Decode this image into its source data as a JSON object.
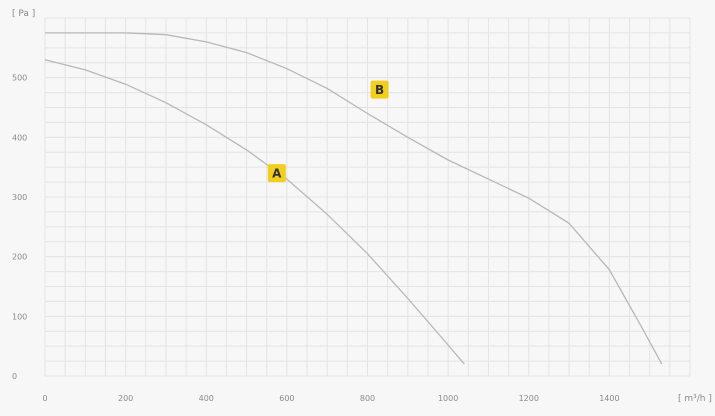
{
  "chart_data": {
    "type": "line",
    "title": "",
    "xunit": "[ m³/h ]",
    "yunit": "[ Pa ]",
    "xlim": [
      0,
      1600
    ],
    "ylim": [
      0,
      600
    ],
    "x_ticks": [
      "0",
      "200",
      "400",
      "600",
      "800",
      "1000",
      "1200",
      "1400"
    ],
    "y_ticks": [
      "0",
      "100",
      "200",
      "300",
      "400",
      "500"
    ],
    "y_tick_values": [
      0,
      100,
      200,
      300,
      400,
      500
    ],
    "x_tick_values": [
      0,
      200,
      400,
      600,
      800,
      1000,
      1200,
      1400
    ],
    "grid": true,
    "colors": {
      "background": "#f7f7f7",
      "grid": "#e4e4e4",
      "curve": "#b8b8b8",
      "marker": "#f2cf1f",
      "text": "#8a8a8a"
    },
    "series": [
      {
        "label": "A",
        "label_at": [
          575,
          340
        ],
        "points": [
          [
            0,
            530
          ],
          [
            100,
            513
          ],
          [
            200,
            489
          ],
          [
            300,
            458
          ],
          [
            400,
            421
          ],
          [
            500,
            379
          ],
          [
            600,
            330
          ],
          [
            700,
            271
          ],
          [
            800,
            205
          ],
          [
            900,
            130
          ],
          [
            1000,
            52
          ],
          [
            1040,
            20
          ]
        ]
      },
      {
        "label": "B",
        "label_at": [
          830,
          480
        ],
        "points": [
          [
            0,
            575
          ],
          [
            200,
            575
          ],
          [
            300,
            572
          ],
          [
            400,
            560
          ],
          [
            500,
            542
          ],
          [
            600,
            515
          ],
          [
            700,
            482
          ],
          [
            800,
            440
          ],
          [
            900,
            400
          ],
          [
            1000,
            362
          ],
          [
            1100,
            330
          ],
          [
            1200,
            298
          ],
          [
            1300,
            256
          ],
          [
            1400,
            178
          ],
          [
            1480,
            82
          ],
          [
            1530,
            20
          ]
        ]
      }
    ]
  }
}
